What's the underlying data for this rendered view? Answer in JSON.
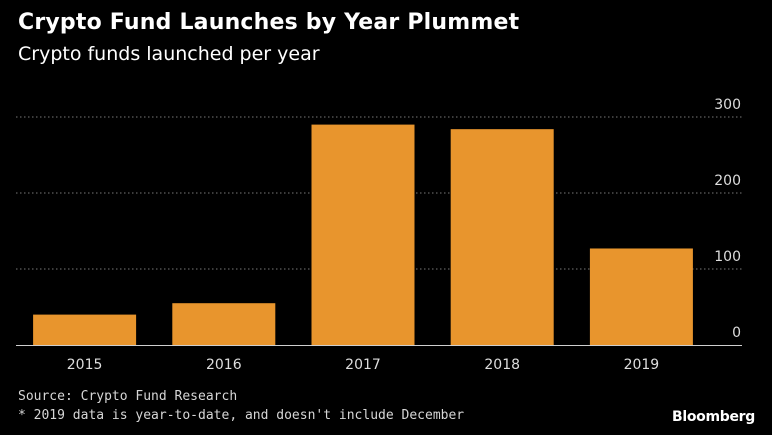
{
  "chart_data": {
    "type": "bar",
    "title": "Crypto Fund Launches by Year Plummet",
    "subtitle": "Crypto funds launched per year",
    "categories": [
      "2015",
      "2016",
      "2017",
      "2018",
      "2019"
    ],
    "values": [
      40,
      55,
      290,
      284,
      127
    ],
    "ylim": [
      0,
      300
    ],
    "yticks": [
      0,
      100,
      200,
      300
    ],
    "xlabel": "",
    "ylabel": "",
    "grid": true,
    "source": "Source: Crypto Fund Research",
    "note": "* 2019 data is year-to-date, and doesn't include December",
    "brand": "Bloomberg",
    "bar_color": "#E8952D",
    "grid_color": "#777777"
  }
}
